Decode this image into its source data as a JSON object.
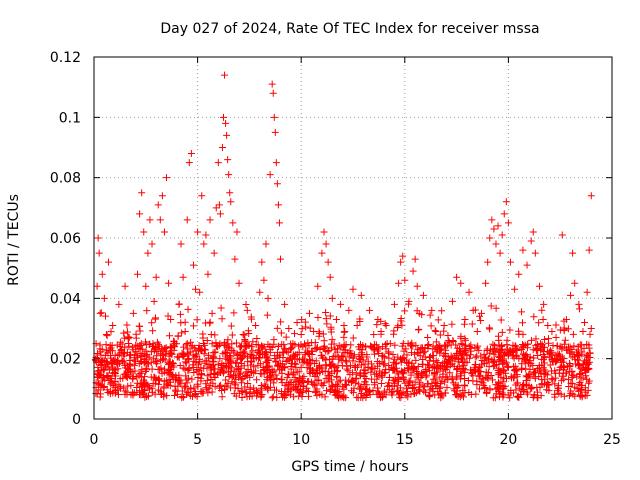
{
  "chart_data": {
    "type": "scatter",
    "title": "Day 027 of 2024, Rate Of TEC Index for receiver mssa",
    "xlabel": "GPS time / hours",
    "ylabel": "ROTI / TECUs",
    "xlim": [
      0,
      25
    ],
    "ylim": [
      0,
      0.12
    ],
    "xticks": [
      "0",
      "5",
      "10",
      "15",
      "20",
      "25"
    ],
    "yticks": [
      "0",
      "0.02",
      "0.04",
      "0.06",
      "0.08",
      "0.1",
      "0.12"
    ],
    "xtick_values": [
      0,
      5,
      10,
      15,
      20,
      25
    ],
    "ytick_values": [
      0,
      0.02,
      0.04,
      0.06,
      0.08,
      0.1,
      0.12
    ],
    "grid": true,
    "marker": "+",
    "color": "#ff0000",
    "series": [
      {
        "name": "ROTI",
        "points": [
          [
            0.1,
            0.012
          ],
          [
            0.1,
            0.025
          ],
          [
            0.15,
            0.044
          ],
          [
            0.2,
            0.06
          ],
          [
            0.25,
            0.055
          ],
          [
            0.3,
            0.035
          ],
          [
            0.35,
            0.018
          ],
          [
            0.4,
            0.048
          ],
          [
            0.5,
            0.04
          ],
          [
            0.6,
            0.028
          ],
          [
            0.7,
            0.052
          ],
          [
            0.8,
            0.021
          ],
          [
            0.9,
            0.031
          ],
          [
            1.0,
            0.015
          ],
          [
            1.2,
            0.038
          ],
          [
            1.4,
            0.022
          ],
          [
            1.5,
            0.044
          ],
          [
            1.7,
            0.027
          ],
          [
            1.9,
            0.035
          ],
          [
            2.0,
            0.019
          ],
          [
            2.1,
            0.048
          ],
          [
            2.2,
            0.068
          ],
          [
            2.3,
            0.075
          ],
          [
            2.4,
            0.062
          ],
          [
            2.5,
            0.044
          ],
          [
            2.6,
            0.055
          ],
          [
            2.7,
            0.066
          ],
          [
            2.8,
            0.058
          ],
          [
            2.9,
            0.039
          ],
          [
            3.0,
            0.047
          ],
          [
            3.1,
            0.071
          ],
          [
            3.2,
            0.066
          ],
          [
            3.3,
            0.074
          ],
          [
            3.4,
            0.062
          ],
          [
            3.5,
            0.08
          ],
          [
            3.6,
            0.045
          ],
          [
            3.7,
            0.033
          ],
          [
            3.9,
            0.025
          ],
          [
            4.1,
            0.038
          ],
          [
            4.2,
            0.058
          ],
          [
            4.3,
            0.047
          ],
          [
            4.4,
            0.029
          ],
          [
            4.5,
            0.066
          ],
          [
            4.6,
            0.085
          ],
          [
            4.7,
            0.088
          ],
          [
            4.8,
            0.051
          ],
          [
            4.9,
            0.043
          ],
          [
            5.0,
            0.062
          ],
          [
            5.1,
            0.042
          ],
          [
            5.2,
            0.074
          ],
          [
            5.3,
            0.058
          ],
          [
            5.4,
            0.061
          ],
          [
            5.5,
            0.048
          ],
          [
            5.6,
            0.066
          ],
          [
            5.7,
            0.035
          ],
          [
            5.8,
            0.055
          ],
          [
            5.9,
            0.07
          ],
          [
            6.0,
            0.085
          ],
          [
            6.05,
            0.071
          ],
          [
            6.1,
            0.068
          ],
          [
            6.2,
            0.09
          ],
          [
            6.25,
            0.1
          ],
          [
            6.3,
            0.114
          ],
          [
            6.35,
            0.098
          ],
          [
            6.4,
            0.094
          ],
          [
            6.45,
            0.086
          ],
          [
            6.5,
            0.081
          ],
          [
            6.55,
            0.075
          ],
          [
            6.6,
            0.072
          ],
          [
            6.7,
            0.065
          ],
          [
            6.8,
            0.053
          ],
          [
            6.9,
            0.062
          ],
          [
            7.0,
            0.045
          ],
          [
            7.2,
            0.028
          ],
          [
            7.4,
            0.036
          ],
          [
            7.6,
            0.024
          ],
          [
            7.8,
            0.031
          ],
          [
            8.0,
            0.042
          ],
          [
            8.1,
            0.052
          ],
          [
            8.2,
            0.046
          ],
          [
            8.3,
            0.058
          ],
          [
            8.4,
            0.04
          ],
          [
            8.5,
            0.081
          ],
          [
            8.6,
            0.111
          ],
          [
            8.65,
            0.108
          ],
          [
            8.7,
            0.1
          ],
          [
            8.75,
            0.095
          ],
          [
            8.8,
            0.085
          ],
          [
            8.85,
            0.078
          ],
          [
            8.9,
            0.071
          ],
          [
            8.95,
            0.065
          ],
          [
            9.0,
            0.053
          ],
          [
            9.2,
            0.038
          ],
          [
            9.4,
            0.03
          ],
          [
            9.6,
            0.025
          ],
          [
            9.8,
            0.032
          ],
          [
            10.0,
            0.028
          ],
          [
            10.2,
            0.022
          ],
          [
            10.4,
            0.035
          ],
          [
            10.6,
            0.029
          ],
          [
            10.8,
            0.044
          ],
          [
            11.0,
            0.055
          ],
          [
            11.1,
            0.062
          ],
          [
            11.2,
            0.058
          ],
          [
            11.3,
            0.052
          ],
          [
            11.4,
            0.047
          ],
          [
            11.5,
            0.04
          ],
          [
            11.7,
            0.033
          ],
          [
            11.9,
            0.038
          ],
          [
            12.1,
            0.029
          ],
          [
            12.3,
            0.036
          ],
          [
            12.5,
            0.043
          ],
          [
            12.7,
            0.031
          ],
          [
            12.9,
            0.041
          ],
          [
            13.1,
            0.024
          ],
          [
            13.3,
            0.036
          ],
          [
            13.5,
            0.028
          ],
          [
            13.7,
            0.033
          ],
          [
            13.9,
            0.021
          ],
          [
            14.1,
            0.031
          ],
          [
            14.3,
            0.025
          ],
          [
            14.5,
            0.038
          ],
          [
            14.7,
            0.045
          ],
          [
            14.8,
            0.052
          ],
          [
            14.9,
            0.054
          ],
          [
            15.0,
            0.046
          ],
          [
            15.2,
            0.039
          ],
          [
            15.4,
            0.049
          ],
          [
            15.5,
            0.053
          ],
          [
            15.6,
            0.044
          ],
          [
            15.7,
            0.035
          ],
          [
            15.9,
            0.041
          ],
          [
            16.1,
            0.027
          ],
          [
            16.3,
            0.036
          ],
          [
            16.5,
            0.029
          ],
          [
            16.7,
            0.024
          ],
          [
            16.9,
            0.031
          ],
          [
            17.1,
            0.026
          ],
          [
            17.3,
            0.039
          ],
          [
            17.5,
            0.047
          ],
          [
            17.7,
            0.045
          ],
          [
            17.9,
            0.033
          ],
          [
            18.1,
            0.042
          ],
          [
            18.3,
            0.036
          ],
          [
            18.5,
            0.029
          ],
          [
            18.7,
            0.035
          ],
          [
            18.9,
            0.045
          ],
          [
            19.0,
            0.052
          ],
          [
            19.1,
            0.06
          ],
          [
            19.2,
            0.066
          ],
          [
            19.3,
            0.063
          ],
          [
            19.4,
            0.058
          ],
          [
            19.5,
            0.064
          ],
          [
            19.6,
            0.055
          ],
          [
            19.7,
            0.061
          ],
          [
            19.8,
            0.068
          ],
          [
            19.9,
            0.072
          ],
          [
            20.0,
            0.065
          ],
          [
            20.1,
            0.052
          ],
          [
            20.3,
            0.043
          ],
          [
            20.5,
            0.048
          ],
          [
            20.7,
            0.056
          ],
          [
            20.9,
            0.051
          ],
          [
            21.1,
            0.059
          ],
          [
            21.2,
            0.062
          ],
          [
            21.3,
            0.055
          ],
          [
            21.5,
            0.044
          ],
          [
            21.7,
            0.038
          ],
          [
            21.9,
            0.031
          ],
          [
            22.1,
            0.029
          ],
          [
            22.3,
            0.027
          ],
          [
            22.5,
            0.024
          ],
          [
            22.6,
            0.061
          ],
          [
            22.8,
            0.033
          ],
          [
            23.0,
            0.041
          ],
          [
            23.1,
            0.055
          ],
          [
            23.2,
            0.045
          ],
          [
            23.4,
            0.038
          ],
          [
            23.6,
            0.029
          ],
          [
            23.8,
            0.042
          ],
          [
            23.9,
            0.056
          ],
          [
            24.0,
            0.074
          ],
          [
            24.0,
            0.03
          ]
        ]
      }
    ]
  }
}
